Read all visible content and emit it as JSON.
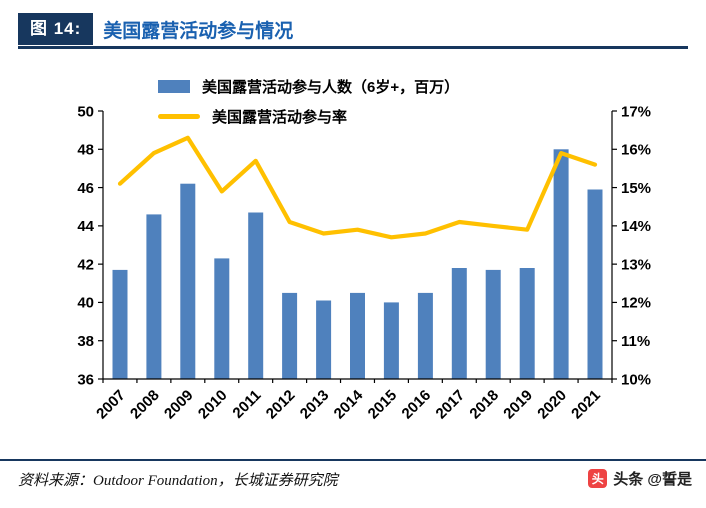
{
  "header": {
    "figure_label": "图 14:",
    "title": "美国露营活动参与情况",
    "accent_color": "#17375E",
    "title_color": "#1A61B0"
  },
  "chart_data": {
    "type": "bar",
    "subtype": "bar+line combo",
    "title": "美国露营活动参与情况",
    "xlabel": "",
    "ylabel_left": "",
    "ylabel_right": "",
    "grid": false,
    "legend_position": "top",
    "categories": [
      "2007",
      "2008",
      "2009",
      "2010",
      "2011",
      "2012",
      "2013",
      "2014",
      "2015",
      "2016",
      "2017",
      "2018",
      "2019",
      "2020",
      "2021"
    ],
    "series": [
      {
        "name": "美国露营活动参与人数（6岁+，百万）",
        "type": "bar",
        "axis": "left",
        "color": "#4F81BD",
        "values": [
          41.7,
          44.6,
          46.2,
          42.3,
          44.7,
          40.5,
          40.1,
          40.5,
          40.0,
          40.5,
          41.8,
          41.7,
          41.8,
          48.0,
          45.9
        ]
      },
      {
        "name": "美国露营活动参与率",
        "type": "line",
        "axis": "right",
        "color": "#FFC000",
        "values": [
          15.1,
          15.9,
          16.3,
          14.9,
          15.7,
          14.1,
          13.8,
          13.9,
          13.7,
          13.8,
          14.1,
          14.0,
          13.9,
          15.9,
          15.6
        ]
      }
    ],
    "y_left": {
      "min": 36,
      "max": 50,
      "ticks": [
        36,
        38,
        40,
        42,
        44,
        46,
        48,
        50
      ],
      "suffix": ""
    },
    "y_right": {
      "min": 10,
      "max": 17,
      "ticks": [
        10,
        11,
        12,
        13,
        14,
        15,
        16,
        17
      ],
      "suffix": "%"
    }
  },
  "footer": {
    "source": "资料来源：Outdoor Foundation，长城证券研究院",
    "watermark": "头条 @誓是",
    "watermark_icon_glyph": "头",
    "watermark_icon_color": "#EE4343"
  }
}
